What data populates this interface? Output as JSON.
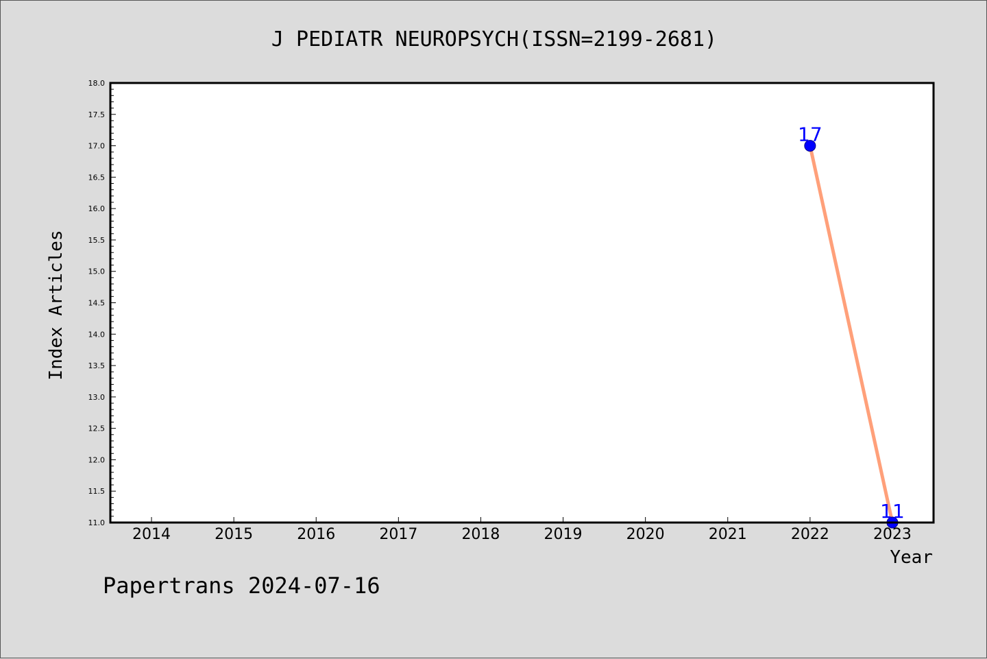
{
  "chart_data": {
    "type": "line",
    "title": "J PEDIATR NEUROPSYCH(ISSN=2199-2681)",
    "xlabel": "Year",
    "ylabel": "Index Articles",
    "footer": "Papertrans 2024-07-16",
    "x_ticks": [
      "2014",
      "2015",
      "2016",
      "2017",
      "2018",
      "2019",
      "2020",
      "2021",
      "2022",
      "2023"
    ],
    "y_ticks": [
      "11.0",
      "11.5",
      "12.0",
      "12.5",
      "13.0",
      "13.5",
      "14.0",
      "14.5",
      "15.0",
      "15.5",
      "16.0",
      "16.5",
      "17.0",
      "17.5",
      "18.0"
    ],
    "xlim": [
      2013.5,
      2023.5
    ],
    "ylim": [
      11,
      18
    ],
    "series": [
      {
        "x": [
          2022,
          2023
        ],
        "values": [
          17,
          11
        ],
        "labels": [
          "17",
          "11"
        ]
      }
    ],
    "colors": {
      "line": "#ffa07a",
      "marker": "#0000ff",
      "label": "#0000ff",
      "plot_bg": "#ffffff",
      "figure_bg": "#dcdcdc"
    },
    "grid": false,
    "legend": "none"
  }
}
